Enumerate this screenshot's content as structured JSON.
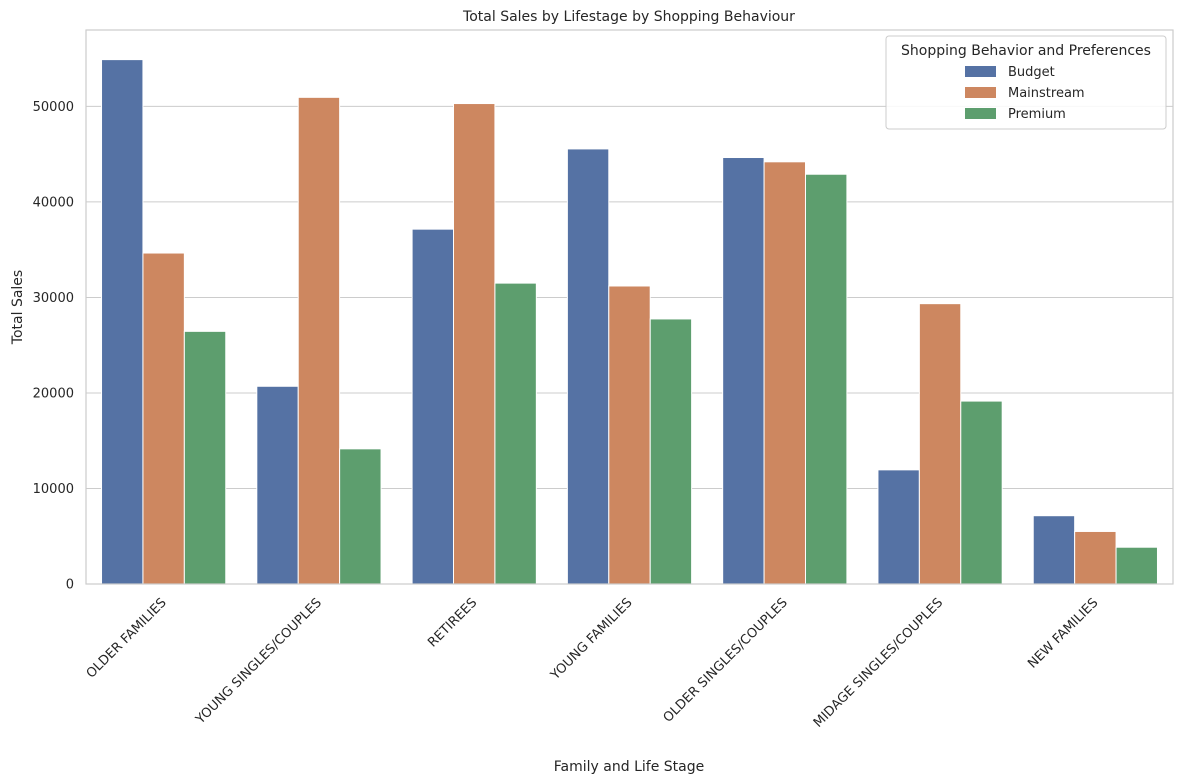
{
  "chart_data": {
    "type": "bar",
    "title": "Total Sales by Lifestage by Shopping Behaviour",
    "xlabel": "Family and Life Stage",
    "ylabel": "Total Sales",
    "categories": [
      "OLDER FAMILIES",
      "YOUNG SINGLES/COUPLES",
      "RETIREES",
      "YOUNG FAMILIES",
      "OLDER SINGLES/COUPLES",
      "MIDAGE SINGLES/COUPLES",
      "NEW FAMILIES"
    ],
    "series": [
      {
        "name": "Budget",
        "color": "#5572a4",
        "values": [
          54900,
          20700,
          37150,
          45550,
          44650,
          11950,
          7150
        ]
      },
      {
        "name": "Mainstream",
        "color": "#cd8760",
        "values": [
          34650,
          50950,
          50300,
          31200,
          44200,
          29350,
          5500
        ]
      },
      {
        "name": "Premium",
        "color": "#5d9e6e",
        "values": [
          26450,
          14150,
          31500,
          27750,
          42900,
          19150,
          3850
        ]
      }
    ],
    "ylim": [
      0,
      58000
    ],
    "yticks": [
      0,
      10000,
      20000,
      30000,
      40000,
      50000
    ],
    "grid": true,
    "legend": {
      "title": "Shopping Behavior and Preferences",
      "position": "top-right"
    }
  }
}
